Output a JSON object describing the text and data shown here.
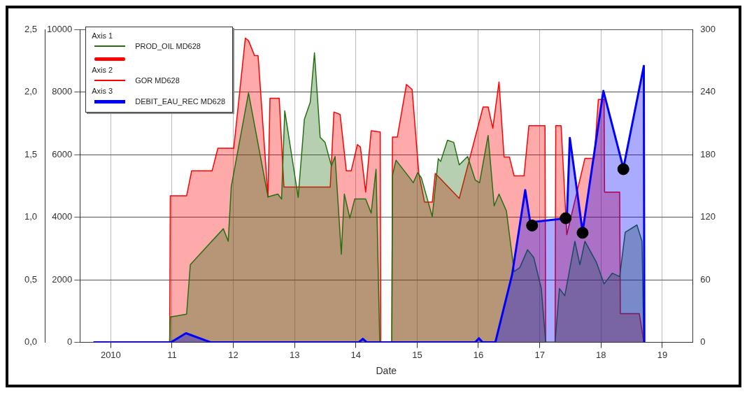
{
  "chart_data": {
    "type": "area",
    "xlabel": "Date",
    "annotations": [
      "Axis 1",
      "Axis 2",
      "Axis 3"
    ],
    "legend": "top left",
    "grid": true,
    "xlim": [
      "2009-07",
      "2019-07"
    ],
    "xticks": [
      {
        "value": "2010",
        "label": "2010"
      },
      {
        "value": "2011",
        "label": "11"
      },
      {
        "value": "2012",
        "label": "12"
      },
      {
        "value": "2013",
        "label": "13"
      },
      {
        "value": "2014",
        "label": "14"
      },
      {
        "value": "2015",
        "label": "15"
      },
      {
        "value": "2016",
        "label": "16"
      },
      {
        "value": "2017",
        "label": "17"
      },
      {
        "value": "2018",
        "label": "18"
      },
      {
        "value": "2019",
        "label": "19"
      }
    ],
    "ylim": [
      0,
      10000
    ],
    "yticks": [
      0,
      2000,
      4000,
      6000,
      8000,
      10000
    ],
    "y2lim": [
      0,
      2.5
    ],
    "y2ticks": [
      {
        "value": 0,
        "label": "0,0"
      },
      {
        "value": 0.5,
        "label": "0,5"
      },
      {
        "value": 1,
        "label": "1,0"
      },
      {
        "value": 1.5,
        "label": "1,5"
      },
      {
        "value": 2,
        "label": "2,0"
      },
      {
        "value": 2.5,
        "label": "2,5"
      }
    ],
    "y3lim": [
      0,
      300
    ],
    "y3ticks": [
      0,
      60,
      120,
      180,
      240,
      300
    ],
    "series": [
      {
        "name": "GOR MD628",
        "color": "#ff0000",
        "axis": "y2",
        "x": [
          "2009-09-20",
          "2010-12-18",
          "2010-12-22",
          "2011-03-29",
          "2011-04-28",
          "2011-08-28",
          "2011-10-01",
          "2012-01-04",
          "2012-03-13",
          "2012-04-01",
          "2012-05-07",
          "2012-05-28",
          "2012-07-26",
          "2012-08-07",
          "2012-10-01",
          "2012-10-29",
          "2013-08-01",
          "2013-08-23",
          "2013-09-29",
          "2013-11-05",
          "2013-12-04",
          "2014-01-10",
          "2014-01-28",
          "2014-02-28",
          "2014-04-02",
          "2014-05-26",
          "2014-05-29",
          "2014-08-03",
          "2014-08-07",
          "2014-09-05",
          "2014-10-29",
          "2014-12-02",
          "2015-01-11",
          "2015-02-14",
          "2015-04-01",
          "2015-04-19",
          "2015-09-09",
          "2016-01-29",
          "2016-02-28",
          "2016-03-27",
          "2016-05-03",
          "2016-06-02",
          "2016-07-04",
          "2016-08-01",
          "2016-09-29",
          "2016-10-28",
          "2017-02-01",
          "2017-02-05",
          "2017-04-02",
          "2017-04-06",
          "2017-05-08",
          "2017-06-11",
          "2017-09-27",
          "2017-11-21",
          "2017-12-16",
          "2018-01-19",
          "2018-01-22",
          "2018-04-22",
          "2018-04-26",
          "2018-08-17",
          "2018-09-13"
        ],
        "values": [
          0,
          0,
          1.17,
          1.17,
          1.37,
          1.37,
          1.55,
          1.55,
          2.43,
          2.41,
          2.29,
          2.29,
          1.16,
          1.95,
          1.95,
          1.24,
          1.24,
          1.84,
          1.82,
          1.37,
          1.37,
          1.58,
          1.56,
          1.2,
          1.69,
          1.68,
          0,
          0,
          1.64,
          1.64,
          2.06,
          2.02,
          1.35,
          1.12,
          1.12,
          1.35,
          1.15,
          1.88,
          1.88,
          1.71,
          2.08,
          1.48,
          1.48,
          1.33,
          1.33,
          1.73,
          1.73,
          0,
          0,
          1.73,
          1.73,
          0.86,
          1.47,
          1.47,
          1.94,
          1.94,
          1.2,
          1.2,
          0.23,
          0.23,
          0
        ]
      },
      {
        "name": "PROD_OIL MD628",
        "color": "#237012",
        "x": [
          "2009-09-20",
          "2010-12-18",
          "2010-12-22",
          "2011-03-29",
          "2011-04-20",
          "2011-07-29",
          "2011-11-03",
          "2011-12-02",
          "2011-12-20",
          "2012-04-01",
          "2012-07-26",
          "2012-09-23",
          "2012-10-15",
          "2012-11-03",
          "2013-01-22",
          "2013-02-28",
          "2013-04-04",
          "2013-04-29",
          "2013-06-02",
          "2013-07-01",
          "2013-08-08",
          "2013-08-30",
          "2013-10-06",
          "2013-10-24",
          "2013-11-26",
          "2013-12-25",
          "2014-02-28",
          "2014-04-02",
          "2014-05-01",
          "2014-05-23",
          "2014-08-03",
          "2014-08-07",
          "2014-08-28",
          "2014-11-17",
          "2014-12-09",
          "2015-01-04",
          "2015-01-26",
          "2015-04-01",
          "2015-05-07",
          "2015-05-21",
          "2015-07-01",
          "2015-08-07",
          "2015-09-09",
          "2015-10-29",
          "2015-12-13",
          "2016-01-08",
          "2016-02-28",
          "2016-04-04",
          "2016-05-03",
          "2016-06-16",
          "2016-08-01",
          "2016-09-04",
          "2016-10-20",
          "2016-11-26",
          "2017-01-10",
          "2017-02-05",
          "2017-04-02",
          "2017-04-28",
          "2017-05-30",
          "2017-07-29",
          "2017-08-28",
          "2017-09-27",
          "2017-12-05",
          "2018-01-19",
          "2018-03-09",
          "2018-04-22",
          "2018-05-25",
          "2018-08-03",
          "2018-09-02",
          "2018-09-13"
        ],
        "values": [
          0,
          0,
          810,
          900,
          2480,
          3070,
          3630,
          3230,
          4970,
          7970,
          4650,
          4740,
          4580,
          7400,
          4630,
          7130,
          7670,
          9250,
          6550,
          6390,
          5640,
          5940,
          2820,
          4740,
          3970,
          4580,
          4580,
          4130,
          5530,
          0,
          0,
          5330,
          5820,
          5260,
          5100,
          5420,
          5260,
          4020,
          5870,
          5780,
          6460,
          6390,
          5670,
          5940,
          5190,
          5100,
          6610,
          4360,
          4740,
          4200,
          2260,
          2390,
          2960,
          2710,
          1720,
          0,
          0,
          1720,
          1490,
          3230,
          2480,
          3230,
          2550,
          1870,
          2210,
          2100,
          3520,
          3750,
          3230,
          0
        ]
      },
      {
        "name": "DEBIT_EAU_REC MD628",
        "color": "#0000ff",
        "axis": "y3",
        "x": [
          "2009-09-20",
          "2010-12-25",
          "2011-03-25",
          "2011-08-21",
          "2014-01-17",
          "2014-02-12",
          "2014-03-07",
          "2015-12-13",
          "2016-01-04",
          "2016-01-26",
          "2016-04-11",
          "2016-07-20",
          "2016-10-06",
          "2016-11-05",
          "2017-06-11",
          "2017-06-29",
          "2017-09-13",
          "2018-01-15",
          "2018-05-14",
          "2018-09-13",
          "2018-09-16"
        ],
        "values": [
          0,
          0,
          8.8,
          0,
          0,
          3.4,
          0,
          0,
          4,
          0,
          0,
          65,
          146,
          115,
          119,
          196,
          106,
          241,
          167,
          265,
          0
        ]
      },
      {
        "type": "scatter",
        "color": "#000000",
        "axis": "y3",
        "marker": "circle",
        "x": [
          "2016-11-16",
          "2017-06-04",
          "2017-09-13",
          "2018-05-14"
        ],
        "values": [
          112,
          119,
          105,
          166
        ]
      }
    ]
  }
}
